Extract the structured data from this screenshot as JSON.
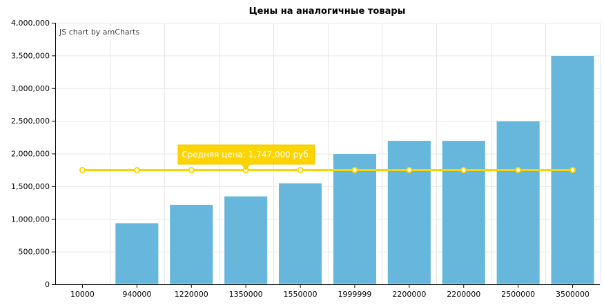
{
  "chart_data": {
    "type": "bar",
    "title": "Цены на аналогичные товары",
    "credit": "JS chart by amCharts",
    "categories": [
      "10000",
      "940000",
      "1220000",
      "1350000",
      "1550000",
      "1999999",
      "2200000",
      "2200000",
      "2500000",
      "3500000"
    ],
    "series": [
      {
        "type": "bar",
        "values": [
          10000,
          940000,
          1220000,
          1350000,
          1550000,
          1999999,
          2200000,
          2200000,
          2500000,
          3500000
        ],
        "color": "#67b7dc"
      },
      {
        "type": "line",
        "values": [
          1747000,
          1747000,
          1747000,
          1747000,
          1747000,
          1747000,
          1747000,
          1747000,
          1747000,
          1747000
        ],
        "color": "#fdd400"
      }
    ],
    "ylim": [
      0,
      4000000
    ],
    "yticks": [
      0,
      500000,
      1000000,
      1500000,
      2000000,
      2500000,
      3000000,
      3500000,
      4000000
    ],
    "ytick_labels": [
      "0",
      "500,000",
      "1,000,000",
      "1,500,000",
      "2,000,000",
      "2,500,000",
      "3,000,000",
      "3,500,000",
      "4,000,000"
    ],
    "grid": true,
    "tooltip": {
      "text": "Средняя цена: 1,747,000 руб.",
      "category_index": 3
    }
  }
}
